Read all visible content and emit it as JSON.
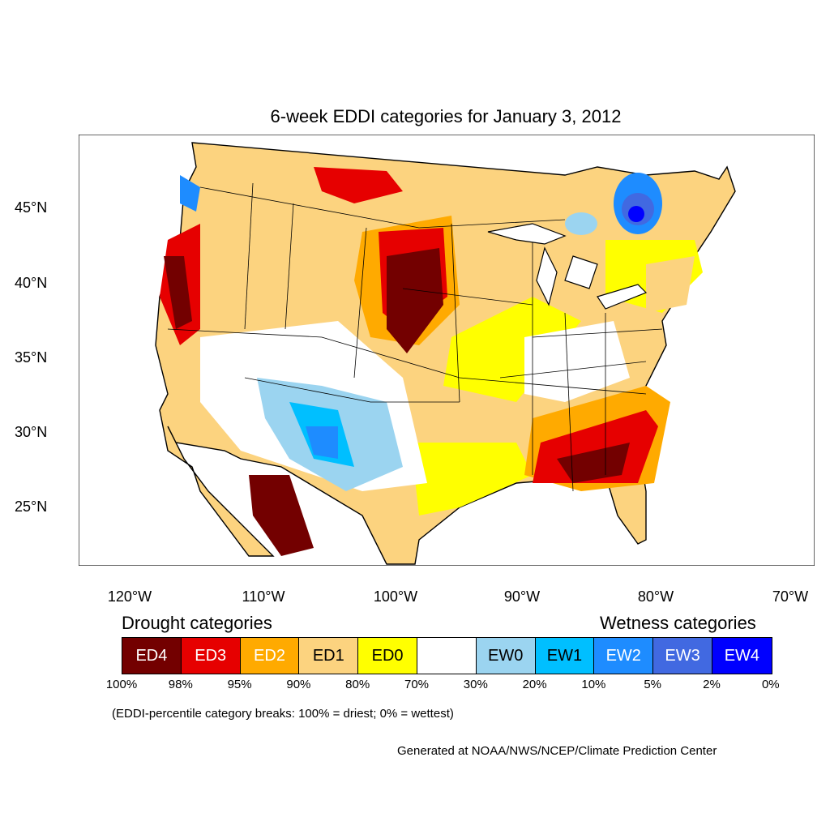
{
  "title": "6-week EDDI categories for January 3, 2012",
  "lat_labels": [
    "45°N",
    "40°N",
    "35°N",
    "30°N",
    "25°N"
  ],
  "lon_labels": [
    "120°W",
    "110°W",
    "100°W",
    "90°W",
    "80°W",
    "70°W"
  ],
  "drought_heading": "Drought categories",
  "wetness_heading": "Wetness categories",
  "legend": [
    {
      "label": "ED4",
      "color": "#730000",
      "text_color": "#ffffff"
    },
    {
      "label": "ED3",
      "color": "#e60000",
      "text_color": "#ffffff"
    },
    {
      "label": "ED2",
      "color": "#ffaa00",
      "text_color": "#ffffff"
    },
    {
      "label": "ED1",
      "color": "#fcd37f",
      "text_color": "#000000"
    },
    {
      "label": "ED0",
      "color": "#ffff00",
      "text_color": "#000000"
    },
    {
      "label": "",
      "color": "#ffffff",
      "text_color": "#000000"
    },
    {
      "label": "EW0",
      "color": "#9bd4f0",
      "text_color": "#000000"
    },
    {
      "label": "EW1",
      "color": "#00bfff",
      "text_color": "#000000"
    },
    {
      "label": "EW2",
      "color": "#1e8cff",
      "text_color": "#ffffff"
    },
    {
      "label": "EW3",
      "color": "#4169e1",
      "text_color": "#ffffff"
    },
    {
      "label": "EW4",
      "color": "#0000ff",
      "text_color": "#ffffff"
    }
  ],
  "percentiles": [
    "100%",
    "98%",
    "95%",
    "90%",
    "80%",
    "70%",
    "30%",
    "20%",
    "10%",
    "5%",
    "2%",
    "0%"
  ],
  "note": "(EDDI-percentile category breaks: 100% = driest; 0% = wettest)",
  "credit": "Generated at NOAA/NWS/NCEP/Climate Prediction Center"
}
